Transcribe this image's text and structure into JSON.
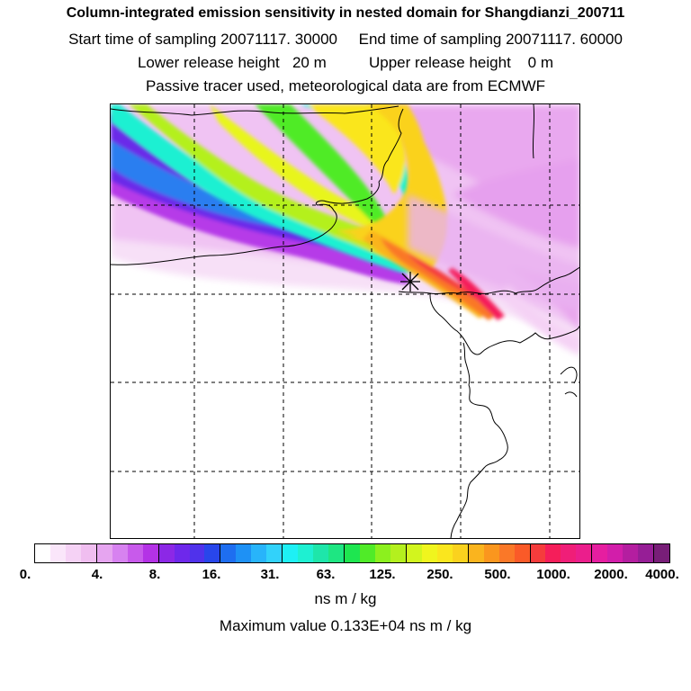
{
  "header": {
    "title": "Column-integrated emission sensitivity in nested domain for Shangdianzi_200711",
    "sampling": "Start time of sampling 20071117. 30000     End time of sampling 20071117. 60000",
    "release": "Lower release height   20 m          Upper release height    0 m",
    "tracer": "Passive tracer used, meteorological data are from ECMWF"
  },
  "colorbar": {
    "unit": "ns m / kg",
    "ticks": [
      "0.",
      "4.",
      "8.",
      "16.",
      "31.",
      "63.",
      "125.",
      "250.",
      "500.",
      "1000.",
      "2000.",
      "4000."
    ],
    "colors": [
      "#ffffff",
      "#fae6fa",
      "#f5d2f5",
      "#f0bef0",
      "#e6a5f0",
      "#d782f0",
      "#c85aeb",
      "#b432e6",
      "#8c28e6",
      "#6e28eb",
      "#5032eb",
      "#2846eb",
      "#1e6ef0",
      "#1e91f5",
      "#28b4fa",
      "#32d2fa",
      "#1ef0f5",
      "#1ef0d2",
      "#1ee6aa",
      "#1ee682",
      "#1ee650",
      "#50eb28",
      "#8cf01e",
      "#b4f01e",
      "#d2f51e",
      "#f0f51e",
      "#fae61e",
      "#fad21e",
      "#fab41e",
      "#fa961e",
      "#fa7828",
      "#fa5a28",
      "#f53c3c",
      "#f51e5a",
      "#f01e78",
      "#eb1e8c",
      "#e61ea0",
      "#d21eaa",
      "#b41ea0",
      "#961e96",
      "#781e78"
    ],
    "max_label": "Maximum value  0.133E+04 ns m / kg"
  },
  "map": {
    "receptor": "Shangdianzi"
  }
}
